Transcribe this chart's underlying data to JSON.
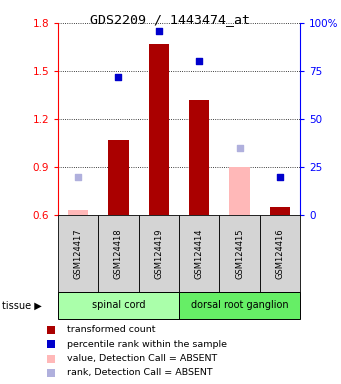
{
  "title": "GDS2209 / 1443474_at",
  "samples": [
    "GSM124417",
    "GSM124418",
    "GSM124419",
    "GSM124414",
    "GSM124415",
    "GSM124416"
  ],
  "bar_values": [
    0.63,
    1.07,
    1.67,
    1.32,
    0.9,
    0.65
  ],
  "rank_values": [
    20,
    72,
    96,
    80,
    35,
    20
  ],
  "bar_absent": [
    true,
    false,
    false,
    false,
    true,
    false
  ],
  "rank_absent": [
    true,
    false,
    false,
    false,
    true,
    false
  ],
  "bar_color_present": "#aa0000",
  "bar_color_absent": "#ffb8b8",
  "rank_color_present": "#0000cc",
  "rank_color_absent": "#b0b0dd",
  "ylim_left": [
    0.6,
    1.8
  ],
  "ylim_right": [
    0,
    100
  ],
  "yticks_left": [
    0.6,
    0.9,
    1.2,
    1.5,
    1.8
  ],
  "yticks_right": [
    0,
    25,
    50,
    75,
    100
  ],
  "ytick_labels_right": [
    "0",
    "25",
    "50",
    "75",
    "100%"
  ],
  "tissue_groups": [
    {
      "label": "spinal cord",
      "start": 0,
      "end": 3,
      "color": "#aaffaa"
    },
    {
      "label": "dorsal root ganglion",
      "start": 3,
      "end": 6,
      "color": "#66ee66"
    }
  ],
  "tissue_label": "tissue",
  "legend_items": [
    {
      "label": "transformed count",
      "color": "#aa0000"
    },
    {
      "label": "percentile rank within the sample",
      "color": "#0000cc"
    },
    {
      "label": "value, Detection Call = ABSENT",
      "color": "#ffb8b8"
    },
    {
      "label": "rank, Detection Call = ABSENT",
      "color": "#b0b0dd"
    }
  ],
  "fig_width": 3.41,
  "fig_height": 3.84,
  "dpi": 100
}
